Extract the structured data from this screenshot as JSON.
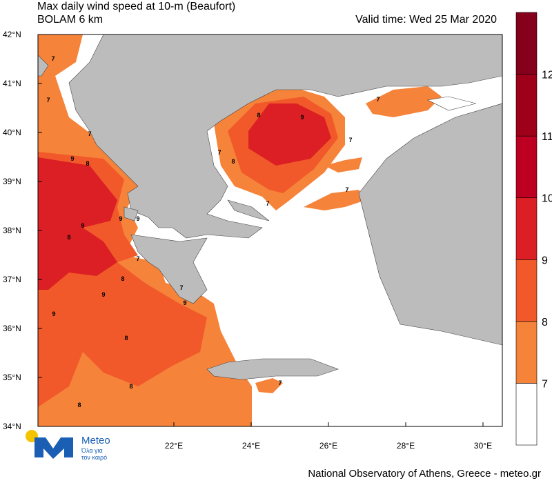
{
  "header": {
    "title": "Max daily wind speed at 10-m (Beaufort)",
    "model": "BOLAM 6 km",
    "valid_time": "Valid time: Wed 25 Mar 2020"
  },
  "map": {
    "lat_labels": [
      "42°N",
      "41°N",
      "40°N",
      "39°N",
      "38°N",
      "37°N",
      "36°N",
      "35°N",
      "34°N"
    ],
    "lon_labels": [
      "22°E",
      "24°E",
      "26°E",
      "28°E",
      "30°E"
    ],
    "contour_labels": [
      "7",
      "7",
      "7",
      "9",
      "8",
      "9",
      "9",
      "9",
      "8",
      "9",
      "9",
      "8",
      "8",
      "8",
      "7",
      "8",
      "7",
      "9",
      "9",
      "8",
      "7",
      "7",
      "7",
      "7",
      "7",
      "7",
      "8"
    ]
  },
  "legend": {
    "levels": [
      7,
      8,
      9,
      10,
      11,
      12
    ],
    "colors": [
      "#ffffff",
      "#f6833a",
      "#f1592a",
      "#db1f24",
      "#bd0022",
      "#9e0019",
      "#85001a"
    ]
  },
  "logo": {
    "name": "Meteo",
    "tagline_1": "Όλα για",
    "tagline_2": "τον καιρό"
  },
  "footer": "National Observatory of Athens, Greece - meteo.gr"
}
